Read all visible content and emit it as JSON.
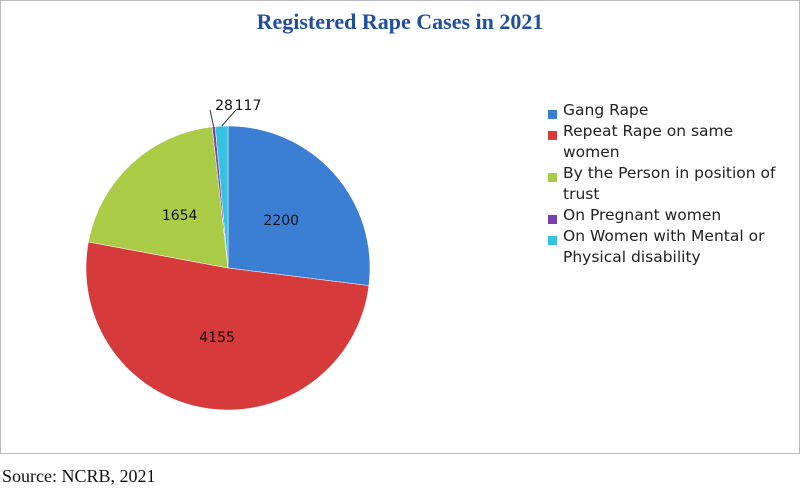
{
  "chart_data": {
    "type": "pie",
    "title": "Registered Rape Cases in 2021",
    "categories": [
      "Gang Rape",
      "Repeat Rape on same women",
      "By the Person in position of trust",
      "On Pregnant women",
      "On Women with Mental or Physical disability"
    ],
    "values": [
      2200,
      4155,
      1654,
      28,
      117
    ],
    "colors": [
      "#3b7fd4",
      "#d63a3a",
      "#a9cb46",
      "#7a40b0",
      "#35c2df"
    ],
    "legend": "right"
  },
  "source": "Source: NCRB, 2021"
}
